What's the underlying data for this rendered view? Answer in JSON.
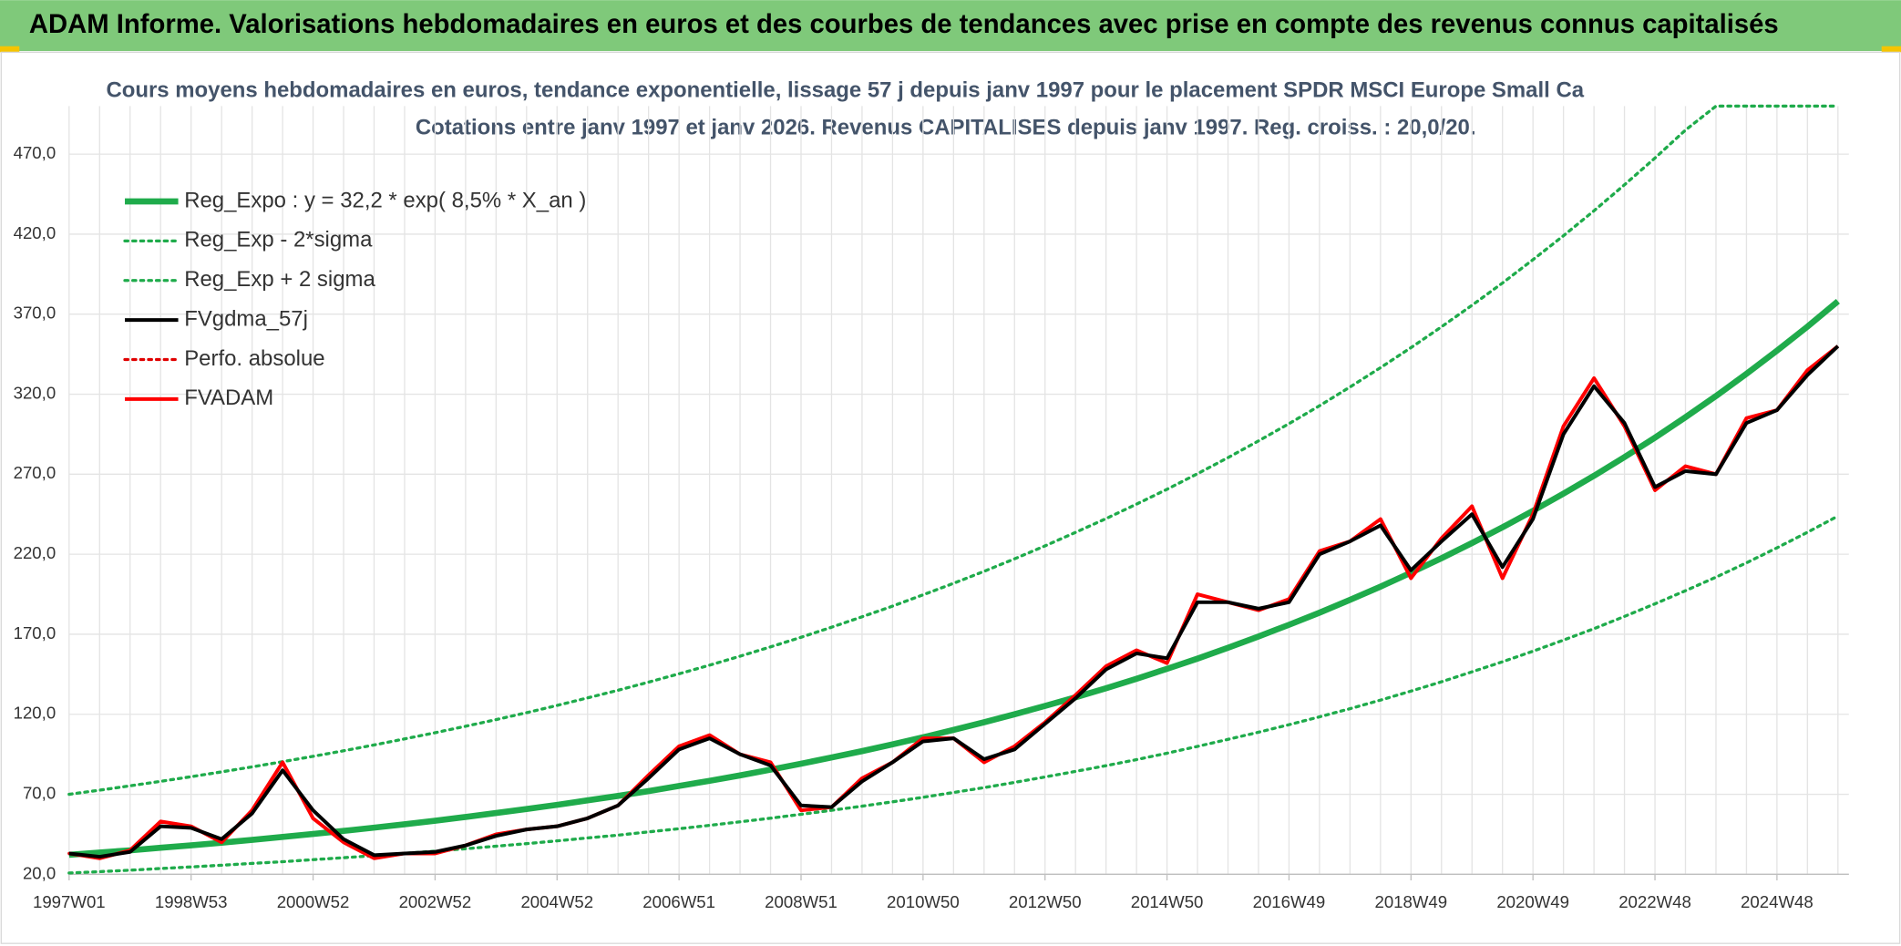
{
  "header": {
    "title": "ADAM Informe. Valorisations hebdomadaires en euros et des courbes de tendances avec prise en compte des revenus connus capitalisés"
  },
  "chart_data": {
    "type": "line",
    "title": "Cours moyens hebdomadaires en euros, tendance exponentielle, lissage 57 j depuis janv 1997 pour le placement SPDR MSCI Europe Small Ca",
    "subtitle": "Cotations entre janv 1997 et janv 2026. Revenus CAPITALISES depuis janv 1997. Reg. croiss. : 20,0/20.",
    "categories": [
      "1997W01",
      null,
      null,
      null,
      "1998W53",
      null,
      null,
      null,
      "2000W52",
      null,
      null,
      null,
      "2002W52",
      null,
      null,
      null,
      "2004W52",
      null,
      null,
      null,
      "2006W51",
      null,
      null,
      null,
      "2008W51",
      null,
      null,
      null,
      "2010W50",
      null,
      null,
      null,
      "2012W50",
      null,
      null,
      null,
      "2014W50",
      null,
      null,
      null,
      "2016W49",
      null,
      null,
      null,
      "2018W49",
      null,
      null,
      null,
      "2020W49",
      null,
      null,
      null,
      "2022W48",
      null,
      null,
      null,
      "2024W48",
      null,
      null
    ],
    "ylim": [
      20,
      500
    ],
    "yticks": [
      {
        "value": 20,
        "label": "20,0"
      },
      {
        "value": 70,
        "label": "70,0"
      },
      {
        "value": 120,
        "label": "120,0"
      },
      {
        "value": 170,
        "label": "170,0"
      },
      {
        "value": 220,
        "label": "220,0"
      },
      {
        "value": 270,
        "label": "270,0"
      },
      {
        "value": 320,
        "label": "320,0"
      },
      {
        "value": 370,
        "label": "370,0"
      },
      {
        "value": 420,
        "label": "420,0"
      },
      {
        "value": 470,
        "label": "470,0"
      }
    ],
    "grid": true,
    "legend": "top-left",
    "series": [
      {
        "name": "Reg_Expo : y = 32,2 * exp( 8,5% *  X_an )",
        "color": "#1fab4b",
        "style": "solid",
        "values": [
          32.2,
          33.6,
          35.0,
          36.6,
          38.1,
          39.8,
          41.5,
          43.3,
          45.2,
          47.1,
          49.2,
          51.3,
          53.5,
          55.8,
          58.3,
          60.8,
          63.4,
          66.2,
          69.0,
          72.0,
          75.2,
          78.4,
          81.8,
          85.4,
          89.1,
          93.0,
          97.0,
          101.2,
          105.6,
          110.2,
          115.0,
          120.0,
          125.2,
          130.6,
          136.3,
          142.2,
          148.4,
          154.8,
          161.6,
          168.6,
          175.9,
          183.5,
          191.5,
          199.8,
          208.5,
          217.5,
          227.0,
          236.8,
          247.1,
          257.9,
          269.0,
          280.7,
          292.9,
          305.6,
          318.9,
          332.7,
          347.2,
          362.2,
          378.0
        ]
      },
      {
        "name": "Reg_Exp - 2*sigma",
        "color": "#1fab4b",
        "style": "dotted",
        "values": [
          20.8,
          21.7,
          22.6,
          23.6,
          24.6,
          25.7,
          26.8,
          27.9,
          29.2,
          30.4,
          31.7,
          33.1,
          34.5,
          36.0,
          37.6,
          39.2,
          40.9,
          42.7,
          44.5,
          46.5,
          48.5,
          50.6,
          52.8,
          55.1,
          57.5,
          60.0,
          62.6,
          65.3,
          68.1,
          71.1,
          74.2,
          77.4,
          80.8,
          84.3,
          87.9,
          91.7,
          95.7,
          99.9,
          104.3,
          108.8,
          113.5,
          118.4,
          123.5,
          128.9,
          134.5,
          140.3,
          146.5,
          152.8,
          159.4,
          166.4,
          173.5,
          181.1,
          189.0,
          197.2,
          205.7,
          214.6,
          224.0,
          233.7,
          243.9
        ]
      },
      {
        "name": "Reg_Exp + 2 sigma",
        "color": "#1fab4b",
        "style": "dotted",
        "values": [
          70.0,
          72.6,
          75.3,
          78.1,
          81.0,
          84.0,
          87.1,
          90.4,
          93.7,
          97.2,
          100.8,
          104.6,
          108.5,
          112.5,
          116.7,
          121.0,
          125.5,
          130.2,
          135.0,
          140.1,
          145.3,
          150.7,
          156.3,
          162.1,
          168.1,
          174.4,
          180.9,
          187.6,
          194.6,
          201.8,
          209.3,
          217.1,
          225.2,
          233.6,
          242.3,
          251.3,
          260.6,
          270.3,
          280.4,
          290.8,
          301.6,
          312.8,
          324.5,
          336.6,
          349.1,
          362.1,
          375.5,
          389.5,
          404.0,
          419.0,
          434.6,
          450.8,
          467.6,
          485.0,
          500,
          500,
          500,
          500,
          500
        ]
      },
      {
        "name": "FVgdma_57j",
        "color": "#000000",
        "style": "solid",
        "values": [
          33,
          31,
          34,
          50,
          49,
          42,
          58,
          85,
          60,
          42,
          32,
          33,
          34,
          38,
          44,
          48,
          50,
          55,
          63,
          80,
          98,
          105,
          95,
          88,
          63,
          62,
          78,
          90,
          103,
          105,
          92,
          98,
          114,
          130,
          148,
          158,
          155,
          190,
          190,
          186,
          190,
          220,
          228,
          238,
          210,
          228,
          245,
          212,
          242,
          295,
          325,
          302,
          262,
          272,
          270,
          302,
          310,
          332,
          350
        ]
      },
      {
        "name": "Perfo. absolue",
        "color": "#e00000",
        "style": "dotted",
        "values": [
          33,
          30,
          35,
          53,
          50,
          40,
          60,
          90,
          55,
          40,
          30,
          33,
          33,
          38,
          45,
          48,
          50,
          55,
          63,
          82,
          100,
          107,
          95,
          90,
          60,
          62,
          80,
          90,
          105,
          105,
          90,
          100,
          115,
          132,
          150,
          160,
          152,
          195,
          190,
          185,
          192,
          222,
          228,
          242,
          205,
          230,
          250,
          205,
          245,
          300,
          330,
          300,
          260,
          275,
          270,
          305,
          310,
          335,
          350
        ]
      },
      {
        "name": "FVADAM",
        "color": "#ff0000",
        "style": "solid",
        "values": [
          33,
          30,
          35,
          53,
          50,
          40,
          60,
          90,
          55,
          40,
          30,
          33,
          33,
          38,
          45,
          48,
          50,
          55,
          63,
          82,
          100,
          107,
          95,
          90,
          60,
          62,
          80,
          90,
          105,
          105,
          90,
          100,
          115,
          132,
          150,
          160,
          152,
          195,
          190,
          185,
          192,
          222,
          228,
          242,
          205,
          230,
          250,
          205,
          245,
          300,
          330,
          300,
          260,
          275,
          270,
          305,
          310,
          335,
          350
        ]
      }
    ]
  }
}
